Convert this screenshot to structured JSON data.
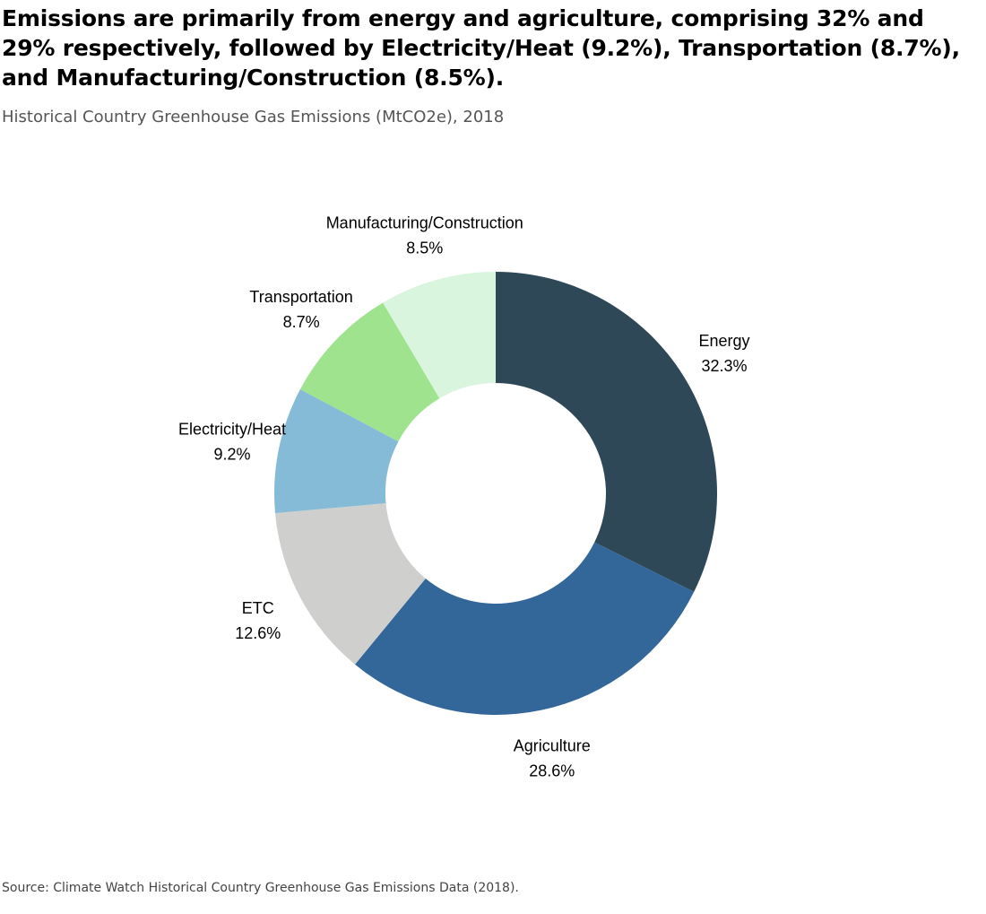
{
  "headline": "Emissions are primarily from energy and agriculture, comprising 32% and 29% respectively, followed by Electricity/Heat (9.2%), Transportation (8.7%), and Manufacturing/Construction (8.5%).",
  "subtitle": "Historical Country Greenhouse Gas Emissions (MtCO2e), 2018",
  "source": "Source: Climate Watch Historical Country Greenhouse Gas Emissions Data (2018).",
  "chart_data": {
    "type": "pie",
    "variant": "donut",
    "title": "Historical Country Greenhouse Gas Emissions (MtCO2e), 2018",
    "start": "12 o'clock",
    "direction": "clockwise",
    "legend": "none",
    "slices": [
      {
        "label": "Energy",
        "value": 32.3,
        "value_label": "32.3%",
        "color": "#2f4858"
      },
      {
        "label": "Agriculture",
        "value": 28.6,
        "value_label": "28.6%",
        "color": "#336699"
      },
      {
        "label": "ETC",
        "value": 12.6,
        "value_label": "12.6%",
        "color": "#cfd0ce"
      },
      {
        "label": "Electricity/Heat",
        "value": 9.2,
        "value_label": "9.2%",
        "color": "#86bbd8"
      },
      {
        "label": "Transportation",
        "value": 8.7,
        "value_label": "8.7%",
        "color": "#9fe38f"
      },
      {
        "label": "Manufacturing/Construction",
        "value": 8.5,
        "value_label": "8.5%",
        "color": "#d9f5dd"
      }
    ]
  }
}
